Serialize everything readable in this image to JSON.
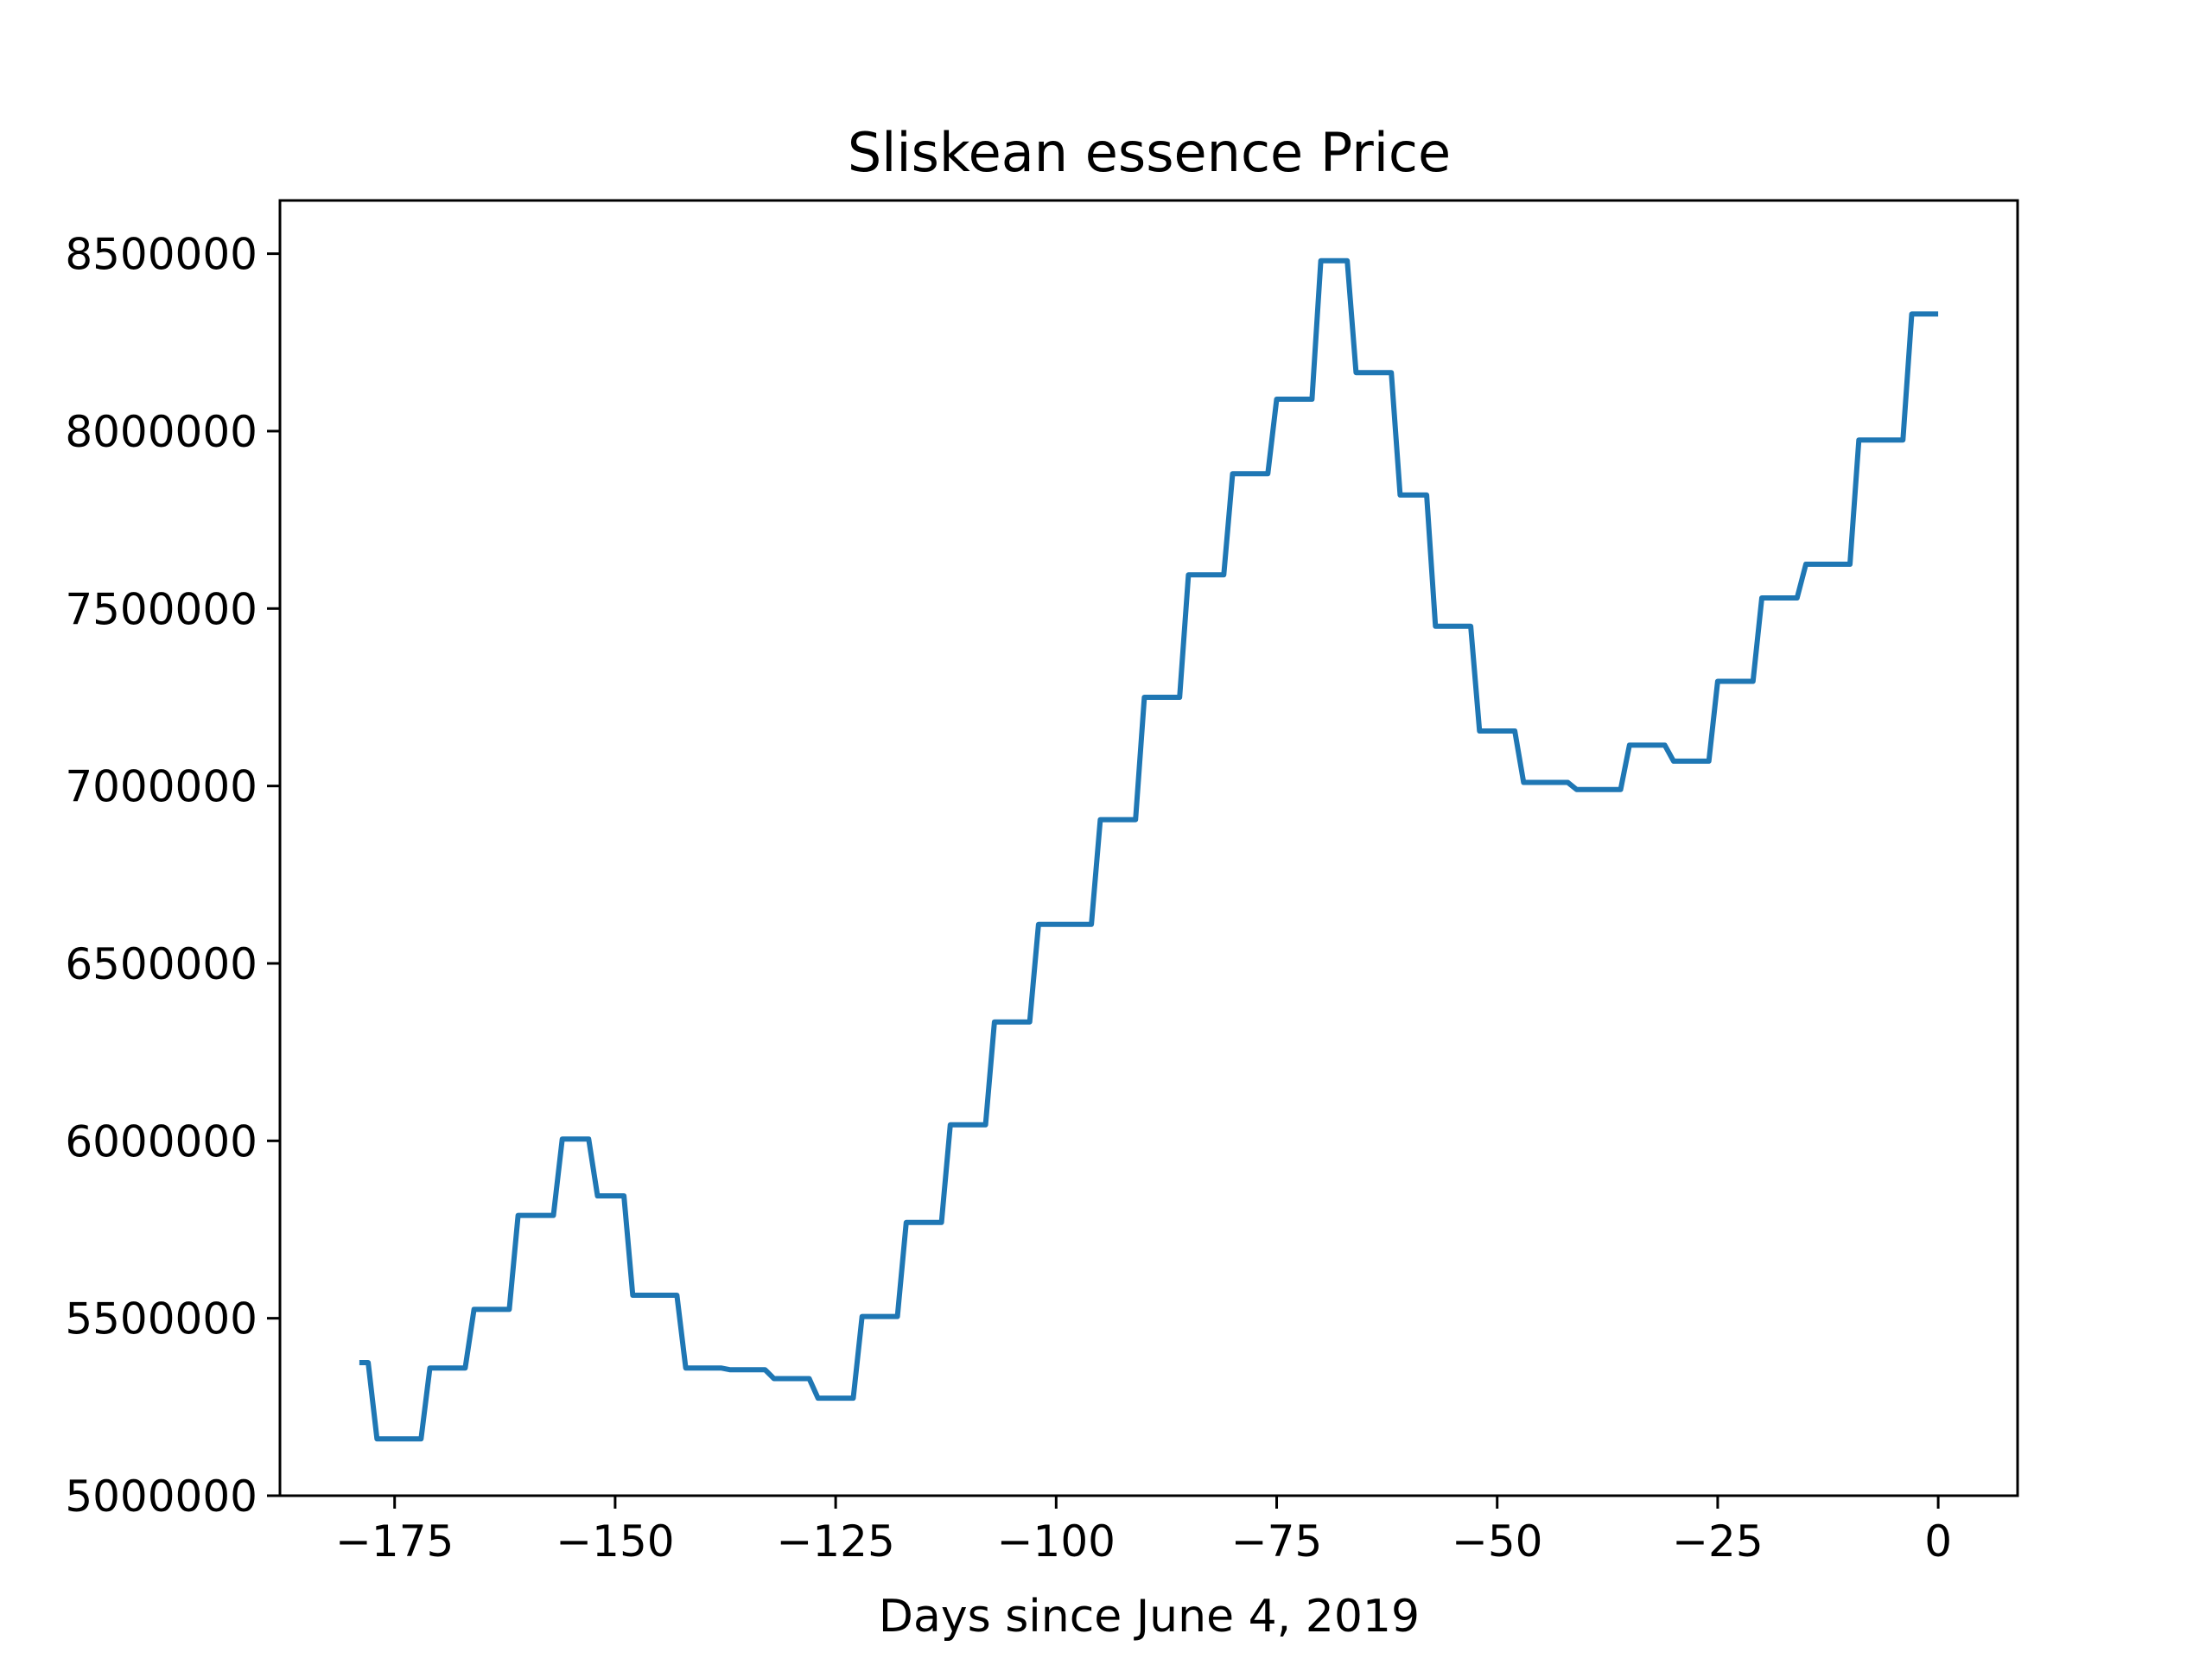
{
  "chart_data": {
    "type": "line",
    "title": "Sliskean essence Price",
    "xlabel": "Days since June 4, 2019",
    "ylabel": "",
    "xlim": [
      -188,
      9
    ],
    "ylim": [
      5000000,
      8650000
    ],
    "xticks": [
      -175,
      -150,
      -125,
      -100,
      -75,
      -50,
      -25,
      0
    ],
    "yticks": [
      5000000,
      5500000,
      6000000,
      6500000,
      7000000,
      7500000,
      8000000,
      8500000
    ],
    "grid": false,
    "legend": "none",
    "series": [
      {
        "color": "#1f77b4",
        "points": [
          [
            -179,
            5375000
          ],
          [
            -178,
            5375000
          ],
          [
            -177,
            5160000
          ],
          [
            -172,
            5160000
          ],
          [
            -171,
            5360000
          ],
          [
            -167,
            5360000
          ],
          [
            -166,
            5525000
          ],
          [
            -162,
            5525000
          ],
          [
            -161,
            5790000
          ],
          [
            -157,
            5790000
          ],
          [
            -156,
            6005000
          ],
          [
            -153,
            6005000
          ],
          [
            -152,
            5845000
          ],
          [
            -149,
            5845000
          ],
          [
            -148,
            5565000
          ],
          [
            -143,
            5565000
          ],
          [
            -142,
            5360000
          ],
          [
            -138,
            5360000
          ],
          [
            -137,
            5355000
          ],
          [
            -133,
            5355000
          ],
          [
            -132,
            5330000
          ],
          [
            -128,
            5330000
          ],
          [
            -127,
            5275000
          ],
          [
            -123,
            5275000
          ],
          [
            -122,
            5505000
          ],
          [
            -118,
            5505000
          ],
          [
            -117,
            5770000
          ],
          [
            -113,
            5770000
          ],
          [
            -112,
            6045000
          ],
          [
            -108,
            6045000
          ],
          [
            -107,
            6335000
          ],
          [
            -103,
            6335000
          ],
          [
            -102,
            6610000
          ],
          [
            -96,
            6610000
          ],
          [
            -95,
            6905000
          ],
          [
            -91,
            6905000
          ],
          [
            -90,
            7250000
          ],
          [
            -86,
            7250000
          ],
          [
            -85,
            7595000
          ],
          [
            -81,
            7595000
          ],
          [
            -80,
            7880000
          ],
          [
            -76,
            7880000
          ],
          [
            -75,
            8090000
          ],
          [
            -71,
            8090000
          ],
          [
            -70,
            8480000
          ],
          [
            -67,
            8480000
          ],
          [
            -66,
            8165000
          ],
          [
            -62,
            8165000
          ],
          [
            -61,
            7820000
          ],
          [
            -58,
            7820000
          ],
          [
            -57,
            7450000
          ],
          [
            -53,
            7450000
          ],
          [
            -52,
            7155000
          ],
          [
            -48,
            7155000
          ],
          [
            -47,
            7010000
          ],
          [
            -42,
            7010000
          ],
          [
            -41,
            6990000
          ],
          [
            -36,
            6990000
          ],
          [
            -35,
            7115000
          ],
          [
            -31,
            7115000
          ],
          [
            -30,
            7070000
          ],
          [
            -26,
            7070000
          ],
          [
            -25,
            7295000
          ],
          [
            -21,
            7295000
          ],
          [
            -20,
            7530000
          ],
          [
            -16,
            7530000
          ],
          [
            -15,
            7625000
          ],
          [
            -10,
            7625000
          ],
          [
            -9,
            7975000
          ],
          [
            -4,
            7975000
          ],
          [
            -3,
            8330000
          ],
          [
            0,
            8330000
          ]
        ]
      }
    ]
  }
}
